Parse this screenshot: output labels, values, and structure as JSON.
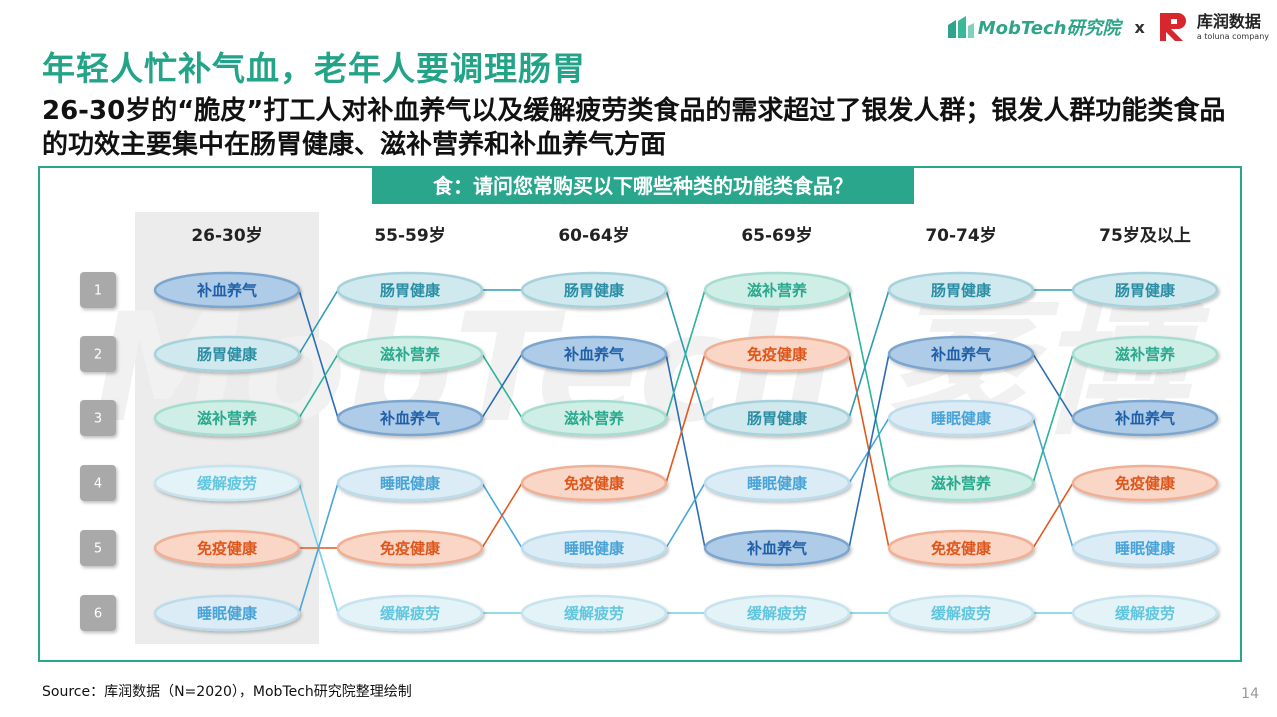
{
  "header": {
    "brand_mobtech": "MobTech研究院",
    "separator": "x",
    "brand_kurun": "库润数据",
    "brand_kurun_sub": "a toluna company"
  },
  "title": "年轻人忙补气血，老年人要调理肠胃",
  "subtitle": "26-30岁的“脆皮”打工人对补血养气以及缓解疲劳类食品的需求超过了银发人群；银发人群功能类食品的功效主要集中在肠胃健康、滋补营养和补血养气方面",
  "question": "食：请问您常购买以下哪些种类的功能类食品？",
  "watermark": "MobTech 袤博",
  "source": "Source：库润数据（N=2020），MobTech研究院整理绘制",
  "page_number": "14",
  "colors": {
    "accent": "#2aa68c",
    "补血养气": "#2a6db5",
    "肠胃健康": "#2f9bb2",
    "滋补营养": "#2db39a",
    "缓解疲劳": "#6fd0e6",
    "免疫健康": "#e2581c",
    "睡眠健康": "#4aa6d8"
  },
  "chart_data": {
    "type": "table",
    "ranks": [
      "1",
      "2",
      "3",
      "4",
      "5",
      "6"
    ],
    "groups": [
      "26-30岁",
      "55-59岁",
      "60-64岁",
      "65-69岁",
      "70-74岁",
      "75岁及以上"
    ],
    "highlight_group": "26-30岁",
    "rankings": [
      [
        "补血养气",
        "肠胃健康",
        "滋补营养",
        "缓解疲劳",
        "免疫健康",
        "睡眠健康"
      ],
      [
        "肠胃健康",
        "滋补营养",
        "补血养气",
        "睡眠健康",
        "免疫健康",
        "缓解疲劳"
      ],
      [
        "肠胃健康",
        "补血养气",
        "滋补营养",
        "免疫健康",
        "睡眠健康",
        "缓解疲劳"
      ],
      [
        "滋补营养",
        "免疫健康",
        "肠胃健康",
        "睡眠健康",
        "补血养气",
        "缓解疲劳"
      ],
      [
        "肠胃健康",
        "补血养气",
        "睡眠健康",
        "滋补营养",
        "免疫健康",
        "缓解疲劳"
      ],
      [
        "肠胃健康",
        "滋补营养",
        "补血养气",
        "免疫健康",
        "睡眠健康",
        "缓解疲劳"
      ]
    ]
  }
}
